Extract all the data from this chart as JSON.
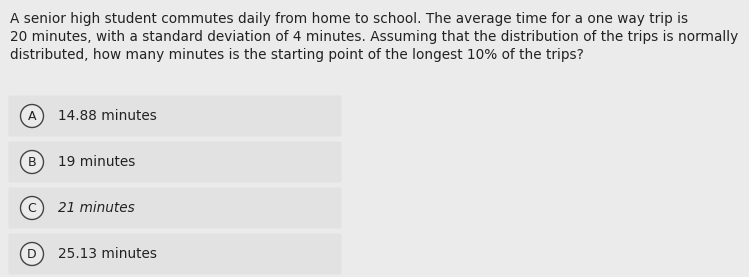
{
  "background_color": "#ebebeb",
  "question_text_line1": "A senior high student commutes daily from home to school. The average time for a one way trip is",
  "question_text_line2": "20 minutes, with a standard deviation of 4 minutes. Assuming that the distribution of the trips is normally",
  "question_text_line3": "distributed, how many minutes is the starting point of the longest 10% of the trips?",
  "options": [
    {
      "label": "A",
      "text": "14.88 minutes",
      "italic": false
    },
    {
      "label": "B",
      "text": "19 minutes",
      "italic": false
    },
    {
      "label": "C",
      "text": "21 minutes",
      "italic": true
    },
    {
      "label": "D",
      "text": "25.13 minutes",
      "italic": false
    }
  ],
  "option_bg_color": "#e2e2e2",
  "outer_bg_color": "#ebebeb",
  "circle_bg_color": "#ebebeb",
  "circle_edge_color": "#444444",
  "text_color": "#222222",
  "question_fontsize": 9.8,
  "option_fontsize": 9.8,
  "label_fontsize": 9.0,
  "fig_width": 7.49,
  "fig_height": 2.77,
  "dpi": 100
}
